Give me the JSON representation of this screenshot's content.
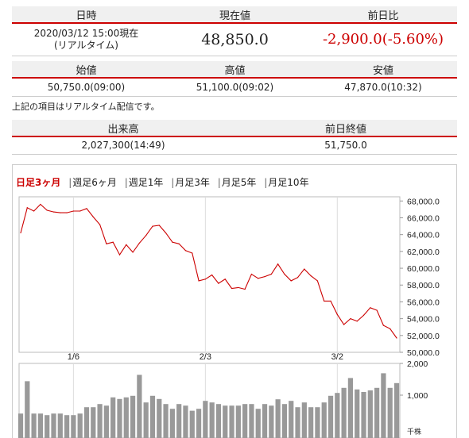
{
  "current": {
    "headers": [
      "日時",
      "現在値",
      "前日比"
    ],
    "datetime_line1": "2020/03/12 15:00現在",
    "datetime_line2": "(リアルタイム)",
    "price": "48,850.0",
    "change": "-2,900.0(-5.60%)"
  },
  "ohl": {
    "headers": [
      "始値",
      "高値",
      "安値"
    ],
    "values": [
      "50,750.0(09:00)",
      "51,100.0(09:02)",
      "47,870.0(10:32)"
    ]
  },
  "note": "上記の項目はリアルタイム配信です。",
  "volume": {
    "headers": [
      "出来高",
      "前日終値"
    ],
    "values": [
      "2,027,300(14:49)",
      "51,750.0"
    ]
  },
  "tabs": [
    {
      "label": "日足3ヶ月",
      "active": true
    },
    {
      "label": "週足6ヶ月",
      "active": false
    },
    {
      "label": "週足1年",
      "active": false
    },
    {
      "label": "月足3年",
      "active": false
    },
    {
      "label": "月足5年",
      "active": false
    },
    {
      "label": "月足10年",
      "active": false
    }
  ],
  "colors": {
    "accent": "#cc0000",
    "header_bg": "#f0f0f0",
    "bar": "#999999",
    "grid": "#dddddd"
  },
  "chart_data": [
    {
      "type": "line",
      "x_tick_labels": [
        "1/6",
        "2/3",
        "3/2"
      ],
      "x_tick_index": [
        8,
        28,
        48
      ],
      "y_tick_labels": [
        "68,000.0",
        "66,000.0",
        "64,000.0",
        "62,000.0",
        "60,000.0",
        "58,000.0",
        "56,000.0",
        "54,000.0",
        "52,000.0",
        "50,000.0"
      ],
      "ylim": [
        50000,
        68500
      ],
      "values": [
        64200,
        67200,
        66800,
        67600,
        66900,
        66700,
        66600,
        66600,
        66800,
        66800,
        67100,
        66100,
        65200,
        62900,
        63100,
        61600,
        62800,
        61900,
        63000,
        63900,
        65000,
        65100,
        64200,
        63100,
        62900,
        62100,
        61800,
        58500,
        58700,
        59200,
        58200,
        58700,
        57600,
        57700,
        57500,
        59300,
        58800,
        59000,
        59300,
        60500,
        59300,
        58500,
        58900,
        59900,
        59100,
        58500,
        56100,
        56100,
        54500,
        53300,
        54000,
        53700,
        54400,
        55300,
        55000,
        53200,
        52800,
        51700
      ]
    },
    {
      "type": "bar",
      "y_tick_labels": [
        "2,000",
        "1,000"
      ],
      "ylim": [
        0,
        2000
      ],
      "unit": "千株",
      "values": [
        420,
        1440,
        420,
        420,
        370,
        420,
        420,
        370,
        370,
        420,
        620,
        620,
        720,
        670,
        930,
        880,
        930,
        980,
        1640,
        770,
        980,
        880,
        720,
        570,
        720,
        670,
        510,
        570,
        820,
        770,
        720,
        670,
        670,
        670,
        720,
        720,
        570,
        720,
        670,
        870,
        720,
        820,
        620,
        770,
        620,
        620,
        770,
        980,
        1070,
        1230,
        1540,
        1180,
        1100,
        1150,
        1230,
        1690,
        1230,
        1380
      ]
    }
  ]
}
